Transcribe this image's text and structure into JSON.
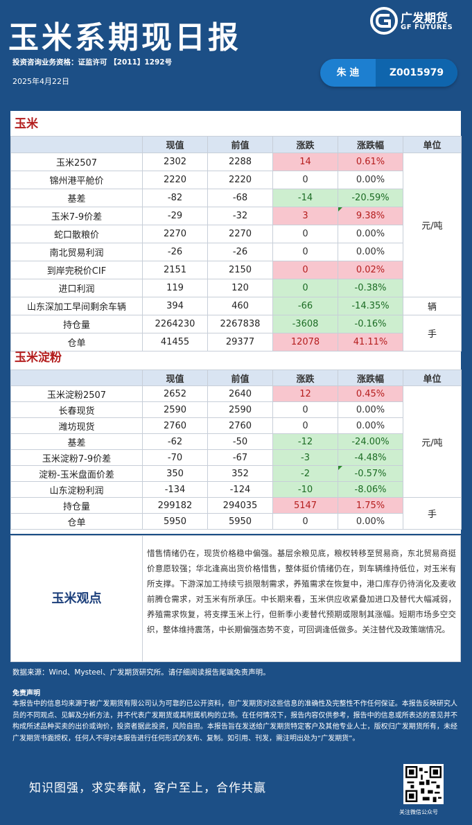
{
  "header": {
    "title": "玉米系期现日报",
    "logo_cn": "广发期货",
    "logo_en": "GF FUTURES",
    "license": "投资咨询业务资格：证监许可 【2011】1292号",
    "date": "2025年4月22日",
    "author_name": "朱 迪",
    "author_code": "Z0015979"
  },
  "corn": {
    "title": "玉米",
    "headers": [
      "",
      "现值",
      "前值",
      "涨跌",
      "涨跌幅",
      "单位"
    ],
    "units": [
      "元/吨",
      "辆",
      "手"
    ],
    "rows": [
      {
        "name": "玉米2507",
        "cur": "2302",
        "prev": "2288",
        "chg": "14",
        "pct": "0.61%"
      },
      {
        "name": "锦州港平舱价",
        "cur": "2220",
        "prev": "2220",
        "chg": "0",
        "pct": "0.00%"
      },
      {
        "name": "基差",
        "cur": "-82",
        "prev": "-68",
        "chg": "-14",
        "pct": "-20.59%"
      },
      {
        "name": "玉米7-9价差",
        "cur": "-29",
        "prev": "-32",
        "chg": "3",
        "pct": "9.38%"
      },
      {
        "name": "蛇口散粮价",
        "cur": "2270",
        "prev": "2270",
        "chg": "0",
        "pct": "0.00%"
      },
      {
        "name": "南北贸易利润",
        "cur": "-26",
        "prev": "-26",
        "chg": "0",
        "pct": "0.00%"
      },
      {
        "name": "到岸完税价CIF",
        "cur": "2151",
        "prev": "2150",
        "chg": "0",
        "pct": "0.02%"
      },
      {
        "name": "进口利润",
        "cur": "119",
        "prev": "120",
        "chg": "0",
        "pct": "-0.38%"
      },
      {
        "name": "山东深加工早间剩余车辆",
        "cur": "394",
        "prev": "460",
        "chg": "-66",
        "pct": "-14.35%"
      },
      {
        "name": "持仓量",
        "cur": "2264230",
        "prev": "2267838",
        "chg": "-3608",
        "pct": "-0.16%"
      },
      {
        "name": "仓单",
        "cur": "41455",
        "prev": "29377",
        "chg": "12078",
        "pct": "41.11%"
      }
    ]
  },
  "starch": {
    "title": "玉米淀粉",
    "headers": [
      "",
      "现值",
      "前值",
      "涨跌",
      "涨跌幅",
      "单位"
    ],
    "units": [
      "元/吨",
      "手"
    ],
    "rows": [
      {
        "name": "玉米淀粉2507",
        "cur": "2652",
        "prev": "2640",
        "chg": "12",
        "pct": "0.45%"
      },
      {
        "name": "长春现货",
        "cur": "2590",
        "prev": "2590",
        "chg": "0",
        "pct": "0.00%"
      },
      {
        "name": "潍坊现货",
        "cur": "2760",
        "prev": "2760",
        "chg": "0",
        "pct": "0.00%"
      },
      {
        "name": "基差",
        "cur": "-62",
        "prev": "-50",
        "chg": "-12",
        "pct": "-24.00%"
      },
      {
        "name": "玉米淀粉7-9价差",
        "cur": "-70",
        "prev": "-67",
        "chg": "-3",
        "pct": "-4.48%"
      },
      {
        "name": "淀粉-玉米盘面价差",
        "cur": "350",
        "prev": "352",
        "chg": "-2",
        "pct": "-0.57%"
      },
      {
        "name": "山东淀粉利润",
        "cur": "-134",
        "prev": "-124",
        "chg": "-10",
        "pct": "-8.06%"
      },
      {
        "name": "持仓量",
        "cur": "299182",
        "prev": "294035",
        "chg": "5147",
        "pct": "1.75%"
      },
      {
        "name": "仓单",
        "cur": "5950",
        "prev": "5950",
        "chg": "0",
        "pct": "0.00%"
      }
    ]
  },
  "view": {
    "label": "玉米观点",
    "text": "惜售情绪仍在，现货价格稳中偏强。基层余粮见底，粮权转移至贸易商，东北贸易商挺价意愿较强；华北逢高出货价格惜售，整体挺价情绪仍在，到车辆维持低位，对玉米有所支撑。下游深加工持续亏损限制需求，养殖需求在恢复中，港口库存仍待消化及麦收前腾仓需求，对玉米有所承压。中长期来看，玉米供应收紧叠加进口及替代大幅减弱，养殖需求恢复，将支撑玉米上行，但新季小麦替代预期或限制其涨幅。短期市场多空交织，整体维持震荡，中长期偏强态势不变，可回调逢低做多。关注替代及政策端情况。"
  },
  "footer": {
    "source": "数据来源：Wind、Mysteel、广发期货研究所。请仔细阅读报告尾端免责声明。",
    "disclaimer_title": "免责声明",
    "disclaimer": "本报告中的信息均来源于被广发期货有限公司认为可靠的已公开资料，但广发期货对这些信息的准确性及完整性不作任何保证。本报告反映研究人员的不同观点、见解及分析方法，并不代表广发期货或其附属机构的立场。在任何情况下，报告内容仅供参考，报告中的信息或所表达的意见并不构成所述品种买卖的出价或询价，投资者据此投资，风险自担。本报告旨在发送给广发期货特定客户及其他专业人士，版权归广发期货所有，未经广发期货书面授权，任何人不得对本报告进行任何形式的发布、复制。如引用、刊发，需注明出处为“广发期货”。",
    "slogan": "知识图强，求实奉献，客户至上，合作共赢",
    "qr_caption": "关注微信公众号"
  },
  "colors": {
    "background": "#1c4f86",
    "up_bg": "#f8c6ce",
    "down_bg": "#cdeecf",
    "header_bg": "#d9e4f2",
    "section_title": "#b31d1d"
  }
}
